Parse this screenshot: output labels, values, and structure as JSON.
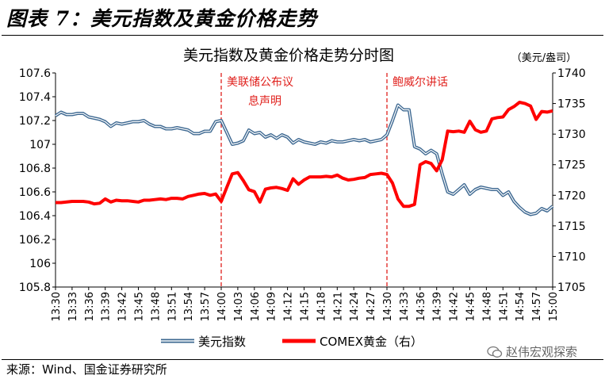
{
  "figure_title": "图表 7：美元指数及黄金价格走势",
  "source": "来源：Wind、国金证券研究所",
  "watermark": "赵伟宏观探索",
  "chart_data": {
    "type": "line",
    "title": "美元指数及黄金价格走势分时图",
    "right_unit": "（美元/盎司）",
    "x_ticks": [
      "13:30",
      "13:33",
      "13:36",
      "13:39",
      "13:42",
      "13:45",
      "13:48",
      "13:51",
      "13:54",
      "13:57",
      "14:00",
      "14:03",
      "14:06",
      "14:09",
      "14:12",
      "14:15",
      "14:18",
      "14:21",
      "14:24",
      "14:27",
      "14:30",
      "14:33",
      "14:36",
      "14:39",
      "14:42",
      "14:45",
      "14:48",
      "14:51",
      "14:54",
      "14:57",
      "15:00"
    ],
    "y_left": {
      "ticks": [
        "105.8",
        "106",
        "106.2",
        "106.4",
        "106.6",
        "106.8",
        "107",
        "107.2",
        "107.4",
        "107.6"
      ],
      "min": 105.8,
      "max": 107.6
    },
    "y_right": {
      "ticks": [
        "1705",
        "1710",
        "1715",
        "1720",
        "1725",
        "1730",
        "1735",
        "1740"
      ],
      "min": 1705,
      "max": 1740
    },
    "annotations": [
      {
        "time": "14:00",
        "text_lines": [
          "美联储公布议",
          "息声明"
        ]
      },
      {
        "time": "14:30",
        "text_lines": [
          "鲍威尔讲话"
        ]
      }
    ],
    "series": [
      {
        "name": "美元指数",
        "axis": "left",
        "color": "#3d6891",
        "x": [
          "13:30",
          "13:31",
          "13:32",
          "13:33",
          "13:34",
          "13:35",
          "13:36",
          "13:37",
          "13:38",
          "13:39",
          "13:40",
          "13:41",
          "13:42",
          "13:43",
          "13:44",
          "13:45",
          "13:46",
          "13:47",
          "13:48",
          "13:49",
          "13:50",
          "13:51",
          "13:52",
          "13:53",
          "13:54",
          "13:55",
          "13:56",
          "13:57",
          "13:58",
          "13:59",
          "14:00",
          "14:01",
          "14:02",
          "14:03",
          "14:04",
          "14:05",
          "14:06",
          "14:07",
          "14:08",
          "14:09",
          "14:10",
          "14:11",
          "14:12",
          "14:13",
          "14:14",
          "14:15",
          "14:16",
          "14:17",
          "14:18",
          "14:19",
          "14:20",
          "14:21",
          "14:22",
          "14:23",
          "14:24",
          "14:25",
          "14:26",
          "14:27",
          "14:28",
          "14:29",
          "14:30",
          "14:31",
          "14:32",
          "14:33",
          "14:34",
          "14:35",
          "14:36",
          "14:37",
          "14:38",
          "14:39",
          "14:40",
          "14:41",
          "14:42",
          "14:43",
          "14:44",
          "14:45",
          "14:46",
          "14:47",
          "14:48",
          "14:49",
          "14:50",
          "14:51",
          "14:52",
          "14:53",
          "14:54",
          "14:55",
          "14:56",
          "14:57",
          "14:58",
          "14:59",
          "15:00"
        ],
        "y": [
          107.24,
          107.27,
          107.25,
          107.25,
          107.26,
          107.26,
          107.23,
          107.22,
          107.21,
          107.19,
          107.15,
          107.18,
          107.17,
          107.18,
          107.19,
          107.19,
          107.2,
          107.17,
          107.15,
          107.15,
          107.13,
          107.13,
          107.14,
          107.13,
          107.12,
          107.09,
          107.09,
          107.11,
          107.11,
          107.19,
          107.2,
          107.1,
          107.0,
          107.01,
          107.03,
          107.12,
          107.09,
          107.1,
          107.06,
          107.08,
          107.05,
          107.08,
          107.06,
          107.01,
          107.04,
          107.02,
          107.01,
          107.0,
          107.02,
          107.01,
          107.03,
          107.02,
          107.02,
          107.03,
          107.04,
          107.03,
          107.04,
          107.02,
          107.03,
          107.04,
          107.08,
          107.2,
          107.33,
          107.29,
          107.29,
          106.98,
          106.96,
          106.92,
          106.95,
          106.92,
          106.75,
          106.6,
          106.58,
          106.62,
          106.66,
          106.58,
          106.62,
          106.64,
          106.63,
          106.62,
          106.62,
          106.57,
          106.6,
          106.52,
          106.47,
          106.43,
          106.41,
          106.42,
          106.46,
          106.44,
          106.48
        ]
      },
      {
        "name": "COMEX黄金（右）",
        "axis": "right",
        "color": "#ff0000",
        "x": [
          "13:30",
          "13:31",
          "13:32",
          "13:33",
          "13:34",
          "13:35",
          "13:36",
          "13:37",
          "13:38",
          "13:39",
          "13:40",
          "13:41",
          "13:42",
          "13:43",
          "13:44",
          "13:45",
          "13:46",
          "13:47",
          "13:48",
          "13:49",
          "13:50",
          "13:51",
          "13:52",
          "13:53",
          "13:54",
          "13:55",
          "13:56",
          "13:57",
          "13:58",
          "13:59",
          "14:00",
          "14:01",
          "14:02",
          "14:03",
          "14:04",
          "14:05",
          "14:06",
          "14:07",
          "14:08",
          "14:09",
          "14:10",
          "14:11",
          "14:12",
          "14:13",
          "14:14",
          "14:15",
          "14:16",
          "14:17",
          "14:18",
          "14:19",
          "14:20",
          "14:21",
          "14:22",
          "14:23",
          "14:24",
          "14:25",
          "14:26",
          "14:27",
          "14:28",
          "14:29",
          "14:30",
          "14:31",
          "14:32",
          "14:33",
          "14:34",
          "14:35",
          "14:36",
          "14:37",
          "14:38",
          "14:39",
          "14:40",
          "14:41",
          "14:42",
          "14:43",
          "14:44",
          "14:45",
          "14:46",
          "14:47",
          "14:48",
          "14:49",
          "14:50",
          "14:51",
          "14:52",
          "14:53",
          "14:54",
          "14:55",
          "14:56",
          "14:57",
          "14:58",
          "14:59",
          "15:00"
        ],
        "y": [
          1718.8,
          1718.8,
          1718.9,
          1719.0,
          1719.0,
          1719.0,
          1718.9,
          1718.6,
          1718.7,
          1719.4,
          1718.9,
          1719.2,
          1719.1,
          1719.1,
          1719.0,
          1718.9,
          1719.2,
          1719.2,
          1719.3,
          1719.4,
          1719.3,
          1719.5,
          1719.5,
          1719.4,
          1719.8,
          1720.0,
          1720.2,
          1720.3,
          1720.0,
          1720.2,
          1719.0,
          1721.3,
          1723.5,
          1723.7,
          1722.4,
          1720.9,
          1720.6,
          1718.9,
          1721.0,
          1721.2,
          1721.3,
          1721.1,
          1720.8,
          1722.7,
          1721.8,
          1722.5,
          1723.0,
          1723.0,
          1723.0,
          1723.1,
          1723.0,
          1723.3,
          1722.8,
          1722.5,
          1722.6,
          1722.8,
          1722.9,
          1723.4,
          1723.5,
          1723.6,
          1723.4,
          1722.0,
          1719.4,
          1718.2,
          1718.2,
          1718.5,
          1725.0,
          1725.5,
          1725.2,
          1724.0,
          1725.8,
          1730.5,
          1730.4,
          1730.5,
          1730.3,
          1732.1,
          1730.7,
          1730.3,
          1730.5,
          1732.5,
          1732.7,
          1732.8,
          1734.0,
          1734.5,
          1735.2,
          1735.0,
          1734.6,
          1732.4,
          1733.7,
          1733.6,
          1733.8
        ]
      }
    ]
  }
}
